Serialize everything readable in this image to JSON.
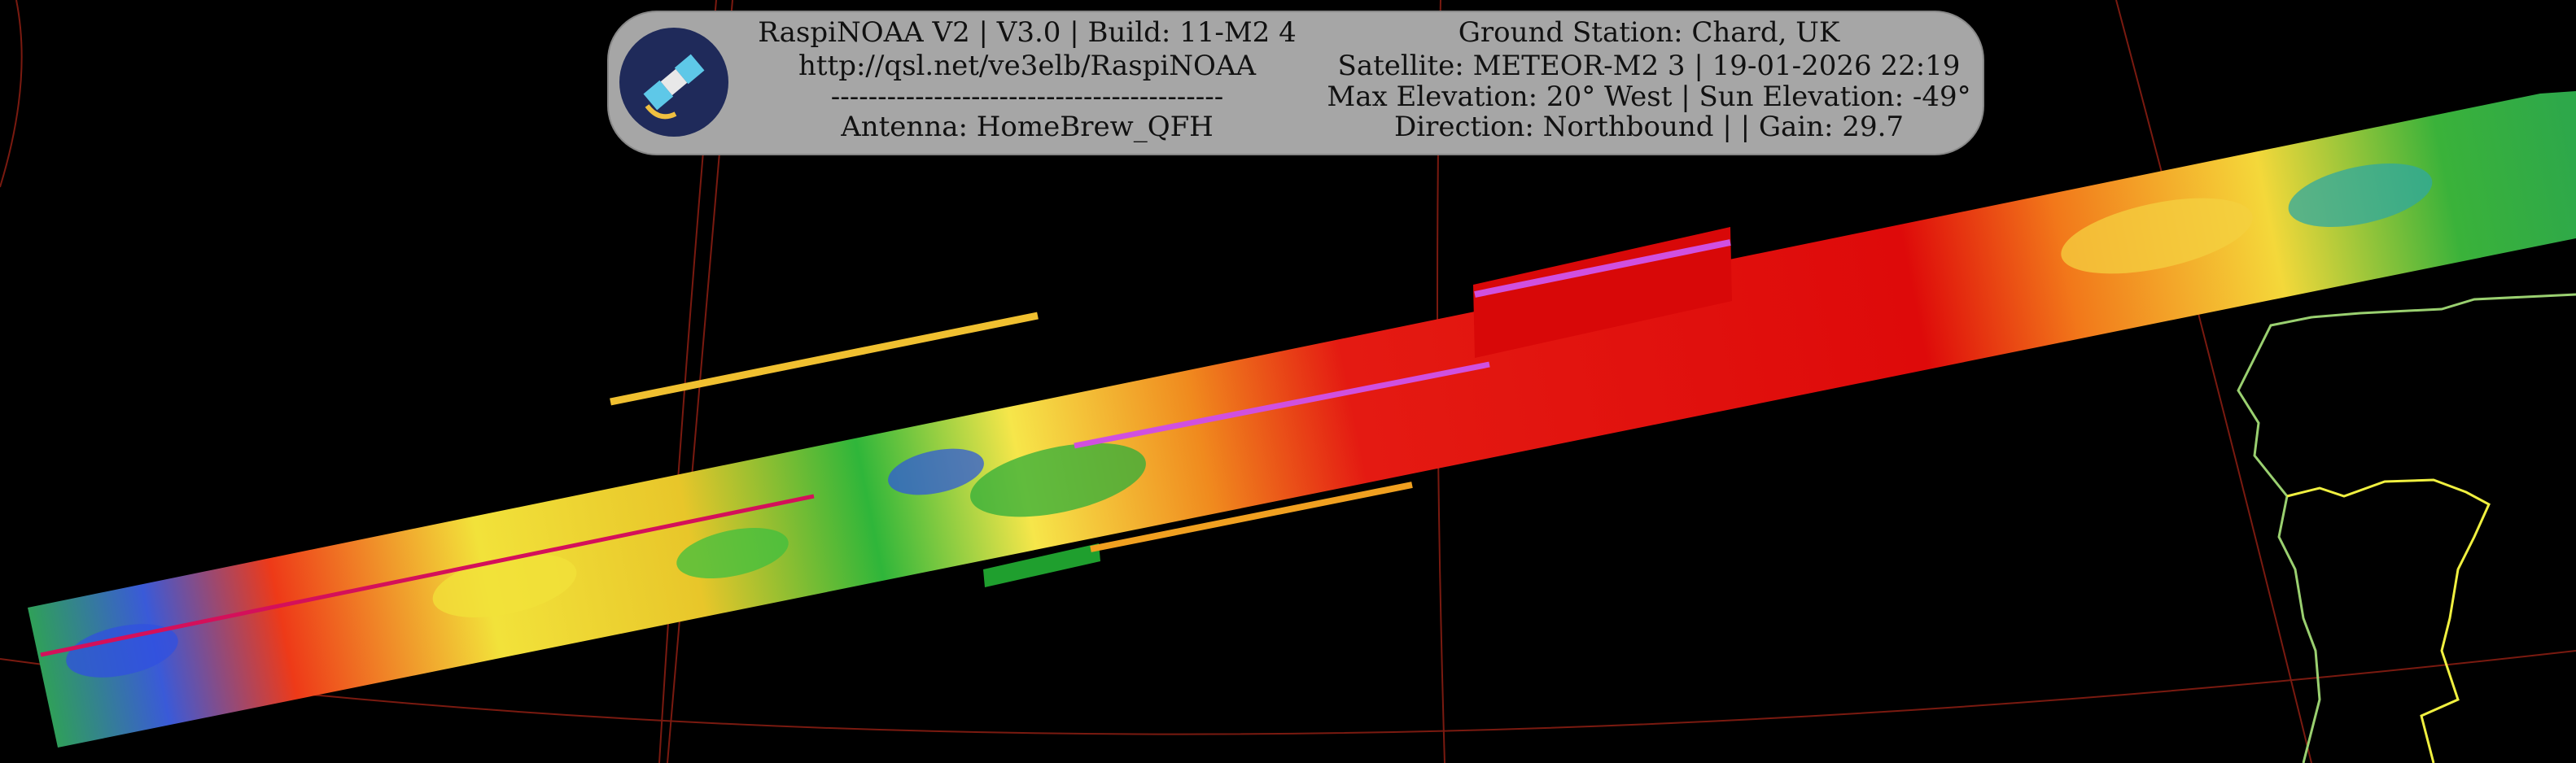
{
  "header": {
    "left": [
      "RaspiNOAA V2 | V3.0 | Build: 11-M2 4",
      "http://qsl.net/ve3elb/RaspiNOAA",
      "------------------------------------------",
      "Antenna: HomeBrew_QFH"
    ],
    "right": [
      "Ground Station: Chard, UK",
      "Satellite: METEOR-M2 3 | 19-01-2026 22:19",
      "Max Elevation: 20° West | Sun Elevation: -49°",
      "Direction: Northbound | | Gain: 29.7"
    ]
  }
}
